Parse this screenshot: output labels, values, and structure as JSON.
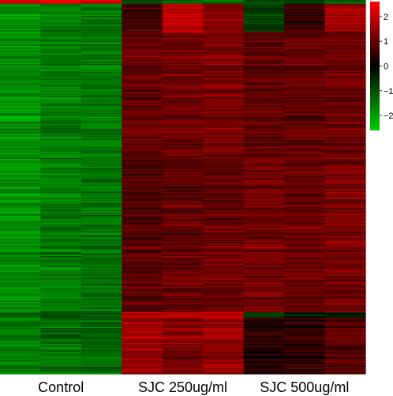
{
  "chart_data": {
    "type": "heatmap",
    "title": "",
    "xlabel": "",
    "ylabel": "",
    "groups": [
      "Control",
      "SJC 250ug/ml",
      "SJC 500ug/ml"
    ],
    "columns_per_group": 3,
    "color_scale": {
      "low": "#00cc00",
      "mid": "#000000",
      "high": "#ff0000",
      "range": [
        -2.6,
        2.6
      ],
      "ticks": [
        {
          "value": 2,
          "label": "2"
        },
        {
          "value": 1,
          "label": "1"
        },
        {
          "value": 0,
          "label": "0"
        },
        {
          "value": -1,
          "label": "−1"
        },
        {
          "value": -2,
          "label": "−2"
        }
      ]
    },
    "legend_placement": "right",
    "row_blocks": [
      {
        "rows": 4,
        "values": [
          2.2,
          2.3,
          2.1,
          -1.0,
          -1.3,
          -1.5,
          -1.2,
          -1.0,
          -1.4
        ]
      },
      {
        "rows": 30,
        "values": [
          -1.9,
          -1.6,
          -1.5,
          0.7,
          1.9,
          1.3,
          -0.8,
          0.5,
          1.6
        ]
      },
      {
        "rows": 130,
        "values": [
          -1.8,
          -1.6,
          -1.5,
          1.0,
          1.1,
          1.2,
          0.9,
          1.0,
          1.1
        ]
      },
      {
        "rows": 100,
        "values": [
          -1.9,
          -1.6,
          -1.5,
          0.8,
          0.9,
          1.0,
          1.1,
          1.0,
          1.2
        ]
      },
      {
        "rows": 70,
        "values": [
          -1.8,
          -1.6,
          -1.5,
          0.9,
          1.0,
          1.1,
          1.2,
          1.1,
          1.1
        ]
      },
      {
        "rows": 6,
        "values": [
          -1.2,
          -1.1,
          -1.2,
          1.9,
          2.0,
          2.0,
          -0.8,
          -0.5,
          -0.4
        ]
      },
      {
        "rows": 60,
        "values": [
          -1.6,
          -1.4,
          -1.3,
          1.6,
          1.3,
          1.5,
          0.4,
          0.5,
          0.9
        ]
      }
    ]
  }
}
